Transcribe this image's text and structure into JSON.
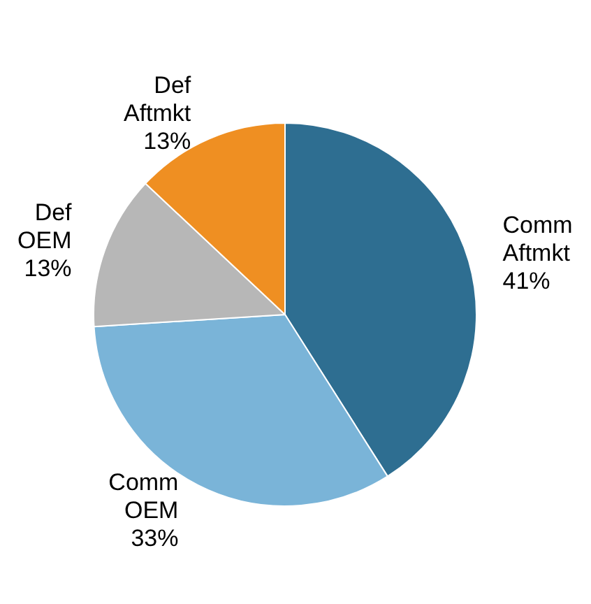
{
  "chart_data": {
    "type": "pie",
    "categories": [
      "Comm Aftmkt",
      "Comm OEM",
      "Def OEM",
      "Def Aftmkt"
    ],
    "values": [
      41,
      33,
      13,
      13
    ],
    "value_labels": [
      "41%",
      "33%",
      "13%",
      "13%"
    ],
    "colors": [
      "#2e6e91",
      "#7ab4d8",
      "#b7b7b7",
      "#ef8f22"
    ],
    "legend": false
  }
}
